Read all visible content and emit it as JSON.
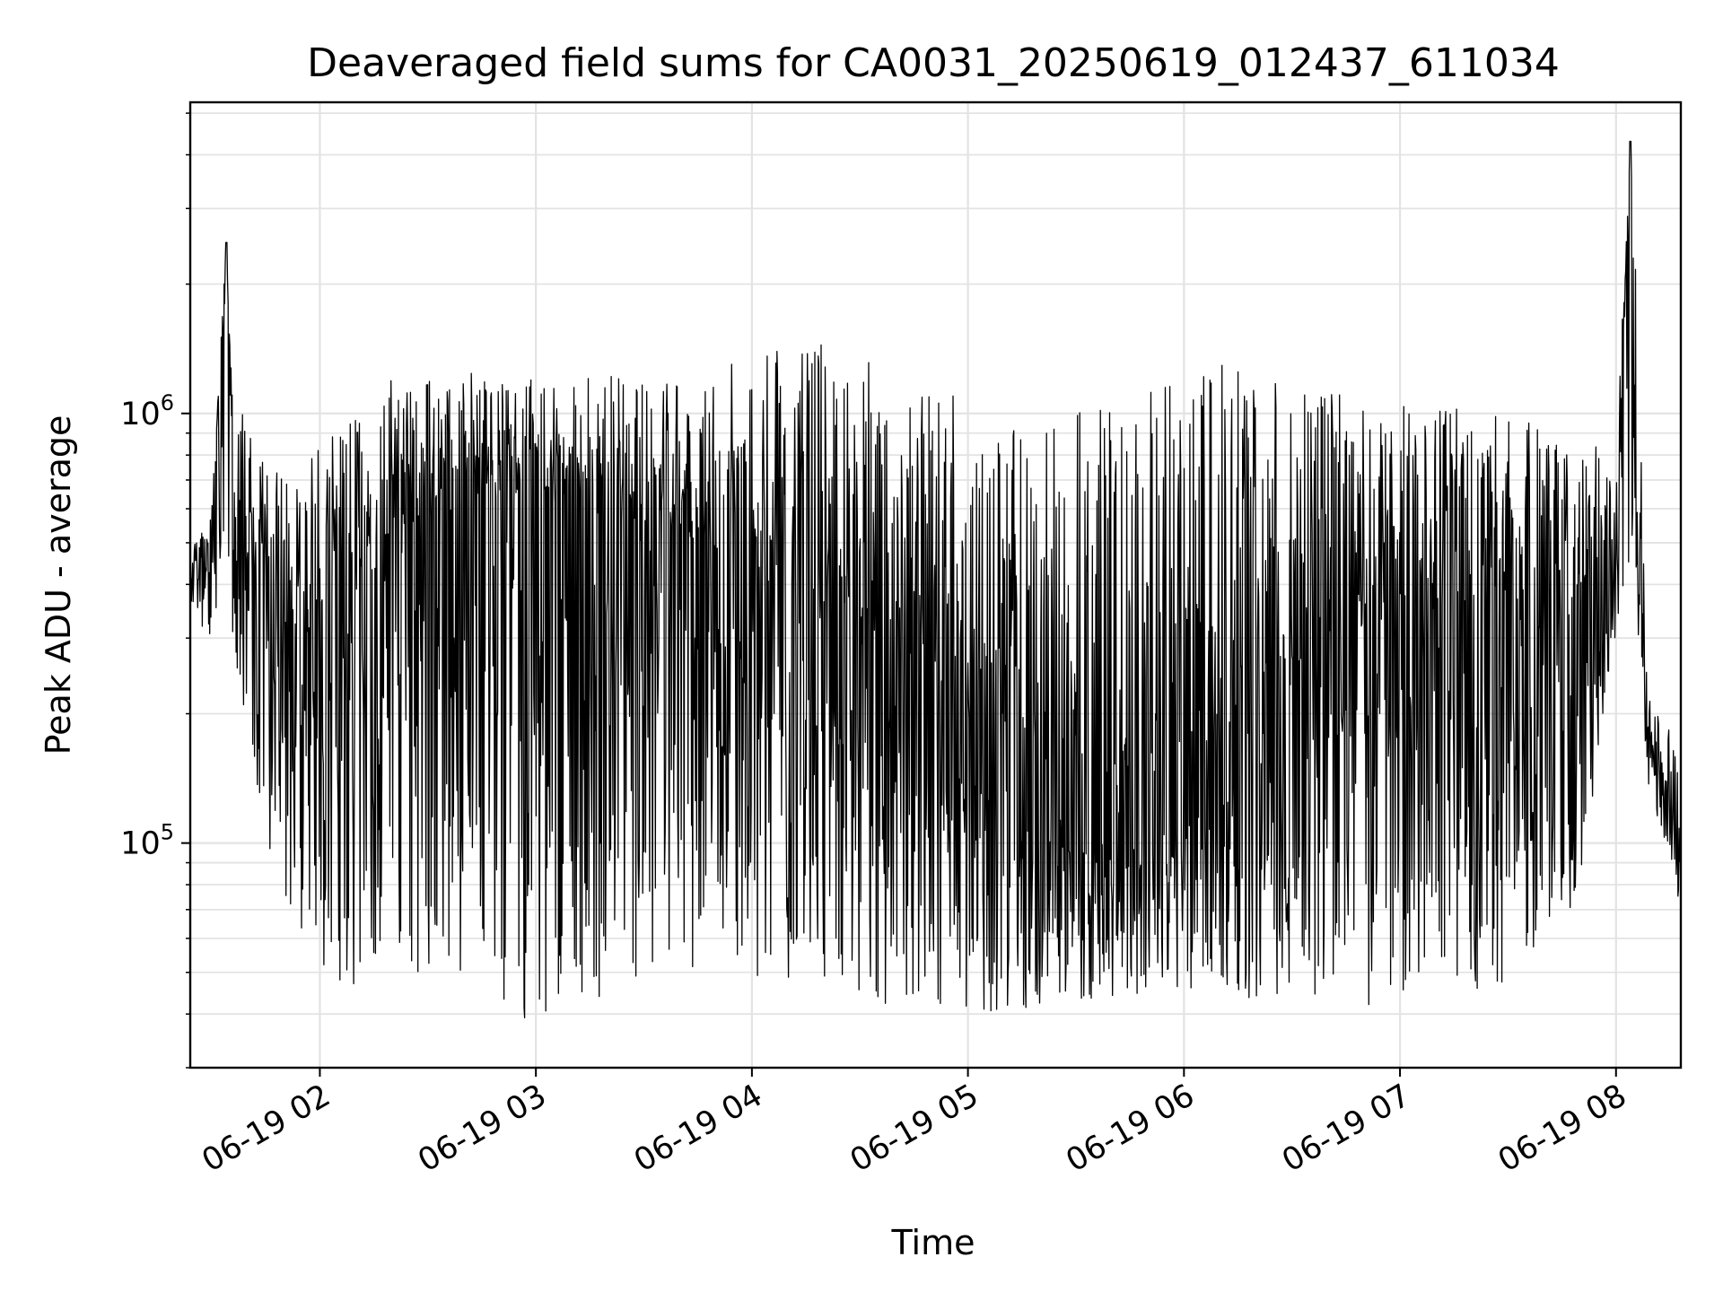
{
  "chart_data": {
    "type": "line",
    "title": "Deaveraged field sums for CA0031_20250619_012437_611034",
    "xlabel": "Time",
    "ylabel": "Peak ADU - average",
    "yscale": "log",
    "grid": true,
    "legend": "none",
    "line_color": "#000000",
    "xlim": [
      "06-19 01:24",
      "06-19 08:18"
    ],
    "ylim": [
      30000,
      5300000
    ],
    "x_ticks": [
      "06-19 02",
      "06-19 03",
      "06-19 04",
      "06-19 05",
      "06-19 06",
      "06-19 07",
      "06-19 08"
    ],
    "y_ticks": [
      {
        "base": "10",
        "exp": "5",
        "value": 100000
      },
      {
        "base": "10",
        "exp": "6",
        "value": 1000000
      }
    ],
    "series": [
      {
        "x": [
          "06-19 01:24",
          "06-19 01:30",
          "06-19 01:34",
          "06-19 01:36",
          "06-19 01:40",
          "06-19 01:45",
          "06-19 01:50",
          "06-19 02:00",
          "06-19 02:10",
          "06-19 02:20",
          "06-19 02:30",
          "06-19 02:40",
          "06-19 02:55",
          "06-19 03:10",
          "06-19 03:30",
          "06-19 03:50",
          "06-19 04:10",
          "06-19 04:30",
          "06-19 04:50",
          "06-19 05:10",
          "06-19 05:30",
          "06-19 05:50",
          "06-19 06:10",
          "06-19 06:30",
          "06-19 06:50",
          "06-19 07:10",
          "06-19 07:30",
          "06-19 07:50",
          "06-19 08:00",
          "06-19 08:04",
          "06-19 08:06",
          "06-19 08:09",
          "06-19 08:18"
        ],
        "y": [
          420000,
          480000,
          2500000,
          500000,
          550000,
          350000,
          250000,
          300000,
          350000,
          420000,
          500000,
          580000,
          600000,
          550000,
          500000,
          420000,
          300000,
          250000,
          200000,
          130000,
          110000,
          110000,
          140000,
          220000,
          280000,
          300000,
          250000,
          300000,
          450000,
          4300000,
          700000,
          170000,
          100000
        ],
        "y_min": [
          360000,
          290000,
          300000,
          240000,
          170000,
          100000,
          75000,
          52000,
          45000,
          55000,
          48000,
          48000,
          36000,
          42000,
          45000,
          50000,
          46000,
          40000,
          42000,
          40000,
          42000,
          45000,
          44000,
          40000,
          40000,
          44000,
          47000,
          75000,
          300000,
          350000,
          300000,
          130000,
          70000
        ],
        "y_max": [
          500000,
          600000,
          2500000,
          1250000,
          900000,
          750000,
          720000,
          900000,
          1000000,
          1200000,
          1200000,
          1250000,
          1200000,
          1250000,
          1250000,
          1300000,
          1450000,
          1450000,
          1200000,
          900000,
          1000000,
          1200000,
          1300000,
          1150000,
          1100000,
          1050000,
          1000000,
          900000,
          800000,
          4300000,
          1700000,
          220000,
          170000
        ]
      }
    ]
  }
}
